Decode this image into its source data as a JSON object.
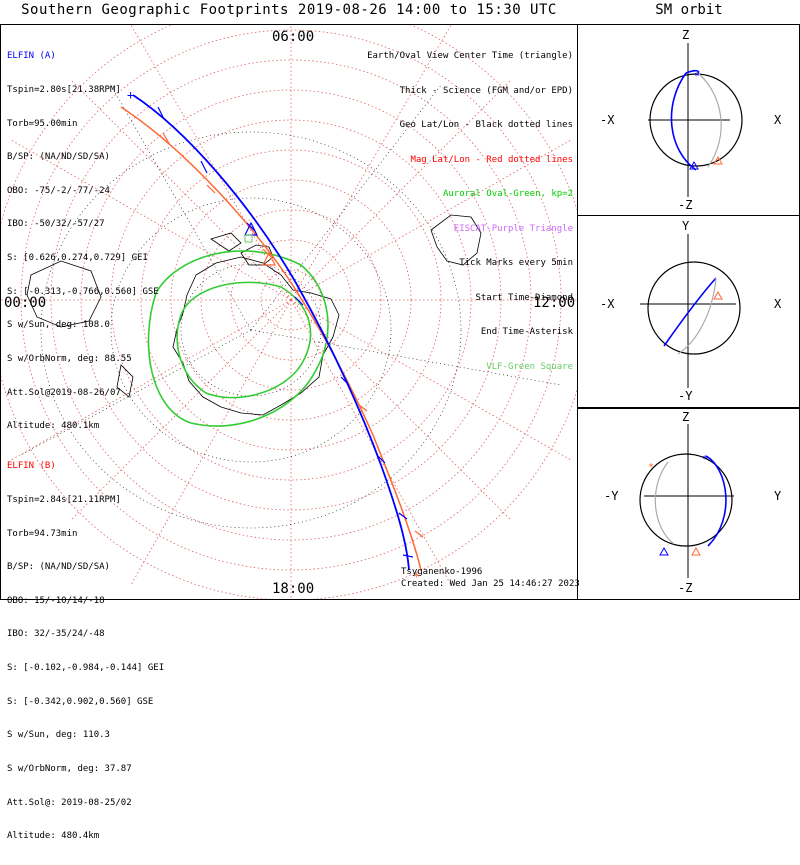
{
  "title": "Southern Geographic Footprints 2019-08-26 14:00 to 15:30 UTC",
  "sm_title": "SM orbit",
  "clock": {
    "top": "06:00",
    "left": "00:00",
    "right": "12:00",
    "bottom": "18:00"
  },
  "elfin_a": {
    "name": "ELFIN (A)",
    "color": "#0000ff",
    "lines": [
      "Tspin=2.80s[21.38RPM]",
      "Torb=95.00min",
      "B/SP: (NA/ND/SD/SA)",
      "OBO: -75/-2/-77/-24",
      "IBO: -50/32/-57/27",
      "S: [0.626,0.274,0.729] GEI",
      "S: [-0.313,-0.766,0.560] GSE",
      "S w/Sun, deg: 108.0",
      "S w/OrbNorm, deg: 88.55",
      "Att.Sol@2019-08-26/07",
      "Altitude: 480.1km"
    ]
  },
  "elfin_b": {
    "name": "ELFIN (B)",
    "color": "#ff0000",
    "lines": [
      "Tspin=2.84s[21.11RPM]",
      "Torb=94.73min",
      "B/SP: (NA/ND/SD/SA)",
      "OBO: 15/-10/14/-18",
      "IBO: 32/-35/24/-48",
      "S: [-0.102,-0.984,-0.144] GEI",
      "S: [-0.342,0.902,0.560] GSE",
      "S w/Sun, deg: 110.3",
      "S w/OrbNorm, deg: 37.87",
      "Att.Sol@: 2019-08-25/02",
      "Altitude: 480.4km"
    ]
  },
  "legend": [
    {
      "text": "Earth/Oval View Center Time (triangle)",
      "color": "#000000"
    },
    {
      "text": "Thick - Science (FGM and/or EPD)",
      "color": "#000000"
    },
    {
      "text": "Geo Lat/Lon - Black dotted lines",
      "color": "#000000"
    },
    {
      "text": "Mag Lat/Lon - Red dotted lines",
      "color": "#ff0000"
    },
    {
      "text": "Auroral Oval-Green, kp=2",
      "color": "#00cc00"
    },
    {
      "text": "EISCAT-Purple Triangle",
      "color": "#cc66ff"
    },
    {
      "text": "Tick Marks every 5min",
      "color": "#000000"
    },
    {
      "text": "Start Time-Diamond",
      "color": "#000000"
    },
    {
      "text": "End Time-Asterisk",
      "color": "#000000"
    },
    {
      "text": "VLF-Green Square",
      "color": "#66cc66"
    }
  ],
  "credit": "Tsyganenko-1996",
  "created": "Created: Wed Jan 25 14:46:27 2023",
  "panels": [
    {
      "top": "Z",
      "left": "-X",
      "right": "X",
      "bottom": "-Z"
    },
    {
      "top": "Y",
      "left": "-X",
      "right": "X",
      "bottom": "-Y"
    },
    {
      "top": "Z",
      "left": "-Y",
      "right": "Y",
      "bottom": "-Z"
    }
  ],
  "colors": {
    "elfin_a": "#0000ff",
    "elfin_b": "#ff6633",
    "oval": "#33cc33",
    "mag_grid": "#e06060",
    "geo_grid": "#000000"
  }
}
